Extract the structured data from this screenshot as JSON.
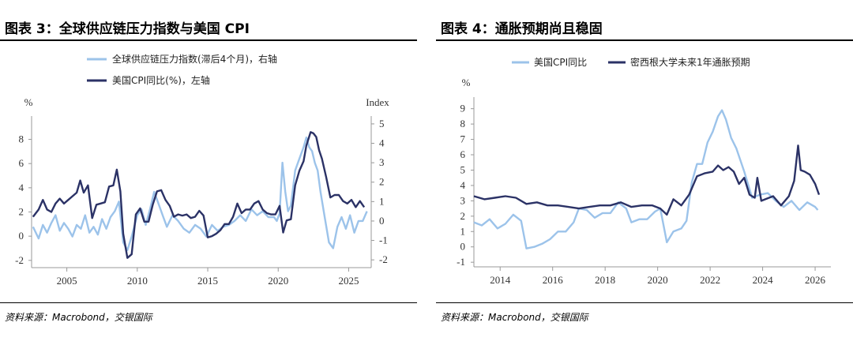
{
  "chart_data": [
    {
      "type": "line",
      "title": "图表 3：全球供应链压力指数与美国 CPI",
      "source": "资料来源：Macrobond，交银国际",
      "left_unit": "%",
      "right_unit": "Index",
      "xlim": [
        2002.5,
        2026.6
      ],
      "x_ticks": [
        2005,
        2010,
        2015,
        2020,
        2025
      ],
      "ylim_left": [
        -2.6,
        9.6
      ],
      "y_ticks_left": [
        -2,
        0,
        2,
        4,
        6,
        8
      ],
      "ylim_right": [
        -2.4,
        5.2
      ],
      "y_ticks_right": [
        -2,
        -1,
        0,
        1,
        2,
        3,
        4,
        5
      ],
      "series": [
        {
          "name": "全球供应链压力指数(滞后4个月)，右轴",
          "axis": "right",
          "color": "#9cc3ea",
          "x": [
            2002.6,
            2003.0,
            2003.3,
            2003.6,
            2003.9,
            2004.2,
            2004.5,
            2004.8,
            2005.1,
            2005.4,
            2005.7,
            2006.0,
            2006.3,
            2006.6,
            2006.9,
            2007.2,
            2007.5,
            2007.8,
            2008.1,
            2008.4,
            2008.7,
            2009.0,
            2009.3,
            2009.6,
            2010.0,
            2010.3,
            2010.6,
            2010.9,
            2011.2,
            2011.5,
            2011.8,
            2012.1,
            2012.5,
            2012.9,
            2013.3,
            2013.7,
            2014.1,
            2014.5,
            2014.9,
            2015.3,
            2015.7,
            2016.1,
            2016.5,
            2016.9,
            2017.3,
            2017.7,
            2018.1,
            2018.5,
            2018.9,
            2019.3,
            2019.7,
            2019.9,
            2020.1,
            2020.3,
            2020.5,
            2020.7,
            2020.9,
            2021.2,
            2021.5,
            2021.8,
            2022.0,
            2022.2,
            2022.4,
            2022.6,
            2022.8,
            2023.0,
            2023.3,
            2023.6,
            2023.9,
            2024.2,
            2024.5,
            2024.8,
            2025.1,
            2025.4,
            2025.7,
            2026.0,
            2026.3
          ],
          "values": [
            -0.3,
            -0.9,
            -0.2,
            -0.6,
            -0.1,
            0.3,
            -0.5,
            -0.1,
            -0.4,
            -0.8,
            -0.2,
            -0.4,
            0.3,
            -0.6,
            -0.3,
            -0.7,
            0.1,
            -0.4,
            0.2,
            0.5,
            1.0,
            -1.1,
            -1.5,
            -0.8,
            0.3,
            0.6,
            -0.2,
            0.6,
            1.5,
            0.9,
            0.3,
            -0.3,
            0.3,
            0.0,
            -0.4,
            -0.6,
            -0.2,
            -0.4,
            -0.8,
            -0.2,
            -0.5,
            -0.3,
            -0.2,
            0.0,
            0.3,
            0.0,
            0.6,
            0.3,
            0.5,
            0.2,
            0.2,
            0.0,
            0.4,
            3.0,
            1.5,
            0.5,
            0.8,
            2.6,
            3.2,
            3.8,
            4.3,
            3.8,
            3.6,
            3.0,
            2.6,
            1.5,
            0.2,
            -1.1,
            -1.4,
            -0.3,
            0.2,
            -0.4,
            0.3,
            -0.6,
            0.0,
            0.0,
            0.5
          ]
        },
        {
          "name": "美国CPI同比(%)，左轴",
          "axis": "left",
          "color": "#2b3266",
          "x": [
            2002.6,
            2003.0,
            2003.3,
            2003.6,
            2003.9,
            2004.2,
            2004.5,
            2004.8,
            2005.1,
            2005.4,
            2005.7,
            2005.95,
            2006.2,
            2006.5,
            2006.8,
            2007.1,
            2007.4,
            2007.7,
            2008.0,
            2008.3,
            2008.55,
            2008.8,
            2009.0,
            2009.3,
            2009.6,
            2009.9,
            2010.2,
            2010.5,
            2010.8,
            2011.1,
            2011.4,
            2011.7,
            2012.0,
            2012.3,
            2012.6,
            2012.9,
            2013.2,
            2013.5,
            2013.8,
            2014.1,
            2014.4,
            2014.7,
            2015.0,
            2015.3,
            2015.6,
            2015.9,
            2016.2,
            2016.5,
            2016.8,
            2017.1,
            2017.4,
            2017.7,
            2018.0,
            2018.3,
            2018.6,
            2018.9,
            2019.2,
            2019.5,
            2019.8,
            2020.1,
            2020.35,
            2020.6,
            2020.9,
            2021.2,
            2021.5,
            2021.8,
            2022.0,
            2022.3,
            2022.5,
            2022.7,
            2022.9,
            2023.1,
            2023.4,
            2023.7,
            2024.0,
            2024.3,
            2024.6,
            2024.9,
            2025.2,
            2025.5,
            2025.8,
            2026.1
          ],
          "values": [
            1.6,
            2.2,
            3.0,
            2.2,
            2.0,
            2.7,
            3.1,
            2.7,
            3.0,
            3.3,
            3.6,
            4.6,
            3.6,
            4.2,
            1.5,
            2.6,
            2.7,
            2.8,
            4.1,
            4.2,
            5.5,
            3.7,
            0.2,
            -1.8,
            -1.5,
            1.8,
            2.3,
            1.2,
            1.2,
            2.6,
            3.7,
            3.8,
            3.0,
            2.5,
            1.6,
            1.8,
            1.7,
            1.8,
            1.5,
            1.6,
            2.1,
            1.7,
            -0.1,
            0.0,
            0.2,
            0.5,
            1.0,
            1.0,
            1.6,
            2.7,
            1.9,
            2.2,
            2.2,
            2.7,
            2.9,
            2.2,
            1.9,
            1.8,
            1.8,
            2.5,
            0.3,
            1.3,
            1.4,
            4.2,
            5.4,
            6.2,
            7.5,
            8.6,
            8.5,
            8.2,
            7.1,
            6.4,
            4.9,
            3.2,
            3.4,
            3.4,
            2.9,
            2.7,
            3.0,
            2.4,
            2.9,
            2.4
          ]
        }
      ]
    },
    {
      "type": "line",
      "title": "图表 4：通胀预期尚且稳固",
      "source": "资料来源：Macrobond，交银国际",
      "left_unit": "%",
      "xlim": [
        2013.0,
        2026.6
      ],
      "x_ticks": [
        2014,
        2016,
        2018,
        2020,
        2022,
        2024,
        2026
      ],
      "ylim": [
        -1.3,
        9.6
      ],
      "y_ticks": [
        -1,
        0,
        1,
        2,
        3,
        4,
        5,
        6,
        7,
        8,
        9
      ],
      "series": [
        {
          "name": "美国CPI同比",
          "color": "#9cc3ea",
          "x": [
            2013.0,
            2013.3,
            2013.6,
            2013.9,
            2014.2,
            2014.5,
            2014.8,
            2015.0,
            2015.3,
            2015.6,
            2015.9,
            2016.2,
            2016.5,
            2016.8,
            2017.0,
            2017.3,
            2017.6,
            2017.9,
            2018.2,
            2018.5,
            2018.8,
            2019.0,
            2019.3,
            2019.6,
            2019.9,
            2020.1,
            2020.35,
            2020.6,
            2020.9,
            2021.1,
            2021.3,
            2021.5,
            2021.7,
            2021.9,
            2022.1,
            2022.3,
            2022.45,
            2022.6,
            2022.8,
            2023.0,
            2023.3,
            2023.6,
            2023.9,
            2024.2,
            2024.5,
            2024.8,
            2025.1,
            2025.4,
            2025.7,
            2026.0,
            2026.1
          ],
          "values": [
            1.6,
            1.4,
            1.8,
            1.2,
            1.5,
            2.1,
            1.7,
            -0.1,
            0.0,
            0.2,
            0.5,
            1.0,
            1.0,
            1.6,
            2.5,
            2.4,
            1.9,
            2.2,
            2.2,
            2.9,
            2.5,
            1.6,
            1.8,
            1.8,
            2.3,
            2.5,
            0.3,
            1.0,
            1.2,
            1.7,
            4.2,
            5.4,
            5.4,
            6.8,
            7.5,
            8.5,
            8.9,
            8.3,
            7.1,
            6.4,
            4.9,
            3.2,
            3.4,
            3.5,
            3.0,
            2.6,
            3.0,
            2.4,
            2.9,
            2.6,
            2.4
          ]
        },
        {
          "name": "密西根大学未来1年通胀预期",
          "color": "#2b3266",
          "x": [
            2013.0,
            2013.4,
            2013.8,
            2014.2,
            2014.6,
            2015.0,
            2015.4,
            2015.8,
            2016.2,
            2016.6,
            2017.0,
            2017.4,
            2017.8,
            2018.2,
            2018.6,
            2019.0,
            2019.4,
            2019.8,
            2020.1,
            2020.35,
            2020.6,
            2020.9,
            2021.2,
            2021.5,
            2021.8,
            2022.1,
            2022.3,
            2022.5,
            2022.7,
            2022.9,
            2023.1,
            2023.3,
            2023.5,
            2023.7,
            2023.8,
            2023.95,
            2024.1,
            2024.4,
            2024.7,
            2025.0,
            2025.2,
            2025.35,
            2025.45,
            2025.6,
            2025.8,
            2026.0,
            2026.15
          ],
          "values": [
            3.3,
            3.1,
            3.2,
            3.3,
            3.2,
            2.8,
            2.9,
            2.7,
            2.7,
            2.6,
            2.5,
            2.6,
            2.7,
            2.7,
            2.9,
            2.6,
            2.7,
            2.7,
            2.5,
            2.1,
            3.1,
            2.7,
            3.4,
            4.6,
            4.8,
            4.9,
            5.3,
            5.0,
            5.2,
            4.9,
            4.1,
            4.5,
            3.4,
            3.2,
            4.5,
            3.0,
            3.1,
            3.3,
            2.7,
            3.3,
            4.3,
            6.6,
            5.0,
            4.9,
            4.7,
            4.1,
            3.4
          ]
        }
      ]
    }
  ]
}
